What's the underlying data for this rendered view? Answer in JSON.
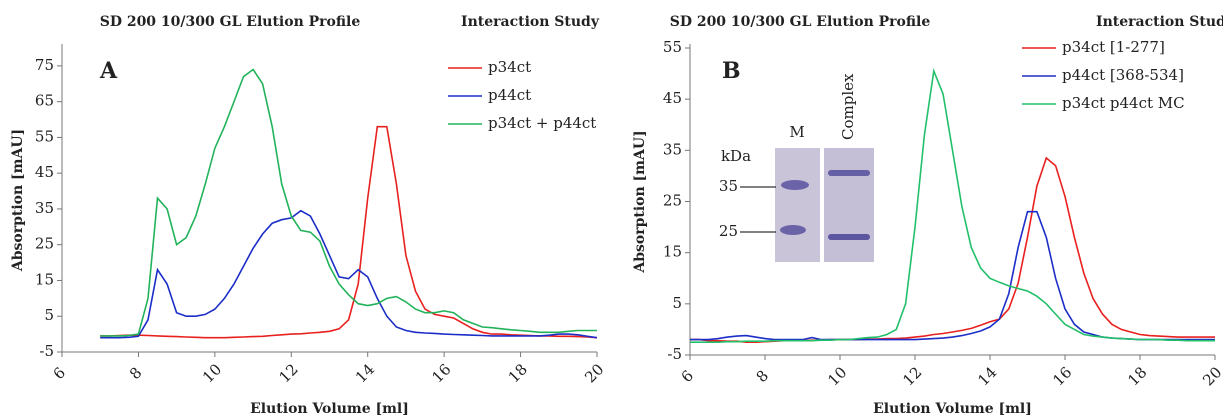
{
  "chart_data": [
    {
      "type": "line",
      "title": "SD 200 10/300 GL Elution Profile",
      "legend_title": "Interaction Study",
      "panel_label": "A",
      "x_label": "Elution Volume [ml]",
      "y_label": "Absorption [mAU]",
      "xlim": [
        6,
        20
      ],
      "xticks": [
        6,
        8,
        10,
        12,
        14,
        16,
        18,
        20
      ],
      "ylim": [
        -5,
        80
      ],
      "yticks": [
        -5,
        5,
        15,
        25,
        35,
        45,
        55,
        65,
        75
      ],
      "grid": false,
      "x": [
        7,
        7.25,
        7.5,
        7.75,
        8,
        8.25,
        8.5,
        8.75,
        9,
        9.25,
        9.5,
        9.75,
        10,
        10.25,
        10.5,
        10.75,
        11,
        11.25,
        11.5,
        11.75,
        12,
        12.25,
        12.5,
        12.75,
        13,
        13.25,
        13.5,
        13.75,
        14,
        14.25,
        14.5,
        14.75,
        15,
        15.25,
        15.5,
        15.75,
        16,
        16.25,
        16.5,
        16.75,
        17,
        17.25,
        17.5,
        17.75,
        18,
        18.25,
        18.5,
        18.75,
        19,
        19.25,
        19.5,
        19.75,
        20
      ],
      "series": [
        {
          "name": "p34ct",
          "color": "#e8201e",
          "values": [
            -0.5,
            -0.5,
            -0.4,
            -0.3,
            -0.3,
            -0.4,
            -0.5,
            -0.6,
            -0.7,
            -0.8,
            -0.9,
            -1,
            -1,
            -1,
            -0.9,
            -0.8,
            -0.7,
            -0.6,
            -0.4,
            -0.2,
            0,
            0.1,
            0.3,
            0.5,
            0.8,
            1.5,
            4,
            14,
            38,
            58,
            58,
            42,
            22,
            12,
            7,
            5.5,
            5,
            4.5,
            3,
            1.5,
            0.5,
            0,
            0,
            -0.2,
            -0.3,
            -0.4,
            -0.5,
            -0.5,
            -0.6,
            -0.6,
            -0.7,
            -0.8,
            -1
          ]
        },
        {
          "name": "p44ct",
          "color": "#1c2ec8",
          "values": [
            -1,
            -1,
            -1,
            -0.9,
            -0.6,
            4,
            18,
            14,
            6,
            5,
            5,
            5.5,
            7,
            10,
            14,
            19,
            24,
            28,
            31,
            32,
            32.5,
            34.5,
            33,
            28,
            22,
            16,
            15.5,
            18,
            16,
            10,
            5,
            2,
            1,
            0.5,
            0.3,
            0.2,
            0,
            -0.1,
            -0.2,
            -0.3,
            -0.4,
            -0.5,
            -0.5,
            -0.5,
            -0.5,
            -0.5,
            -0.5,
            -0.3,
            0,
            0,
            -0.2,
            -0.6,
            -1
          ]
        },
        {
          "name": "p34ct + p44ct",
          "color": "#22b35a",
          "values": [
            -0.5,
            -0.5,
            -0.5,
            -0.4,
            0,
            10,
            38,
            35,
            25,
            27,
            33,
            42,
            52,
            58,
            65,
            72,
            74,
            70,
            58,
            42,
            33,
            29,
            28.5,
            26,
            19,
            14,
            11,
            8.5,
            8,
            8.5,
            10,
            10.5,
            9,
            7,
            6,
            6,
            6.5,
            6,
            4,
            3,
            2,
            1.8,
            1.5,
            1.2,
            1,
            0.8,
            0.5,
            0.5,
            0.5,
            0.8,
            1,
            1,
            1
          ]
        }
      ]
    },
    {
      "type": "line",
      "title": "SD 200 10/300 GL Elution Profile",
      "legend_title": "Interaction Study",
      "panel_label": "B",
      "x_label": "Elution Volume [ml]",
      "y_label": "Absorption [mAU]",
      "xlim": [
        6,
        20
      ],
      "xticks": [
        6,
        8,
        10,
        12,
        14,
        16,
        18,
        20
      ],
      "ylim": [
        -5,
        55
      ],
      "yticks": [
        -5,
        5,
        15,
        25,
        35,
        45,
        55
      ],
      "grid": false,
      "x": [
        6,
        6.25,
        6.5,
        6.75,
        7,
        7.25,
        7.5,
        7.75,
        8,
        8.25,
        8.5,
        8.75,
        9,
        9.25,
        9.5,
        9.75,
        10,
        10.25,
        10.5,
        10.75,
        11,
        11.25,
        11.5,
        11.75,
        12,
        12.25,
        12.5,
        12.75,
        13,
        13.25,
        13.5,
        13.75,
        14,
        14.25,
        14.5,
        14.75,
        15,
        15.25,
        15.5,
        15.75,
        16,
        16.25,
        16.5,
        16.75,
        17,
        17.25,
        17.5,
        17.75,
        18,
        18.25,
        18.5,
        18.75,
        19,
        19.25,
        19.5,
        19.75,
        20
      ],
      "series": [
        {
          "name": "p34ct [1-277]",
          "color": "#e8201e",
          "values": [
            -2,
            -2,
            -2.2,
            -2.2,
            -2.3,
            -2.3,
            -2.5,
            -2.5,
            -2.4,
            -2.3,
            -2.2,
            -2.2,
            -2.2,
            -2.1,
            -2.1,
            -2,
            -2,
            -2,
            -2,
            -1.9,
            -1.9,
            -1.8,
            -1.8,
            -1.7,
            -1.5,
            -1.3,
            -1,
            -0.8,
            -0.5,
            -0.2,
            0.2,
            0.8,
            1.5,
            2,
            4,
            9,
            18,
            28,
            33.5,
            32,
            26,
            18,
            11,
            6,
            3,
            1,
            0,
            -0.5,
            -1,
            -1.2,
            -1.3,
            -1.4,
            -1.5,
            -1.5,
            -1.5,
            -1.5,
            -1.5
          ]
        },
        {
          "name": "p44ct [368-534]",
          "color": "#1c2ec8",
          "values": [
            -2,
            -2,
            -2,
            -1.8,
            -1.5,
            -1.3,
            -1.2,
            -1.5,
            -1.8,
            -2,
            -2,
            -2,
            -2,
            -1.6,
            -2,
            -2,
            -2,
            -2,
            -2,
            -2,
            -2,
            -2,
            -2,
            -2,
            -2,
            -1.9,
            -1.8,
            -1.7,
            -1.5,
            -1.2,
            -0.8,
            -0.3,
            0.5,
            2,
            7,
            16,
            23,
            23,
            18,
            10,
            4,
            1,
            -0.5,
            -1,
            -1.5,
            -1.7,
            -1.8,
            -1.9,
            -2,
            -2,
            -2,
            -2,
            -2,
            -2,
            -2,
            -2,
            -2
          ]
        },
        {
          "name": "p34ct p44ct MC",
          "color": "#22c06a",
          "values": [
            -2.5,
            -2.5,
            -2.5,
            -2.5,
            -2.4,
            -2.4,
            -2.3,
            -2.3,
            -2.3,
            -2.2,
            -2.2,
            -2.2,
            -2.2,
            -2.2,
            -2.1,
            -2.1,
            -2,
            -2,
            -1.8,
            -1.6,
            -1.5,
            -1,
            0,
            5,
            20,
            38,
            50.5,
            46,
            35,
            24,
            16,
            12,
            10,
            9.2,
            8.5,
            8,
            7.5,
            6.5,
            5,
            3,
            1,
            0,
            -1,
            -1.3,
            -1.5,
            -1.7,
            -1.8,
            -1.9,
            -2,
            -2,
            -2,
            -2.1,
            -2.1,
            -2.2,
            -2.2,
            -2.2,
            -2.2
          ]
        }
      ],
      "inset": {
        "lanes": [
          "M",
          "Complex"
        ],
        "unit": "kDa",
        "markers": [
          35,
          25
        ]
      }
    }
  ]
}
